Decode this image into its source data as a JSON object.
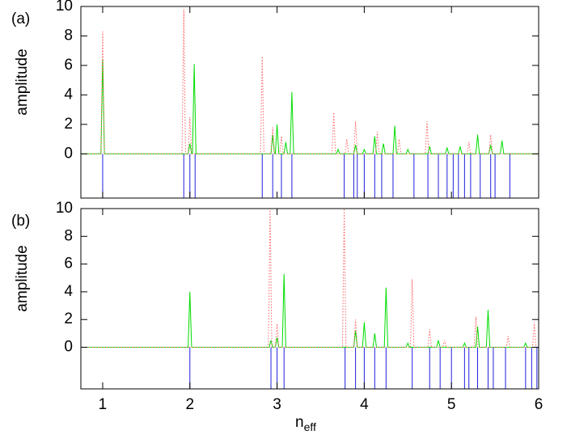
{
  "chart_data": [
    {
      "type": "line",
      "label": "(a)",
      "ylabel": "amplitude",
      "xlim": [
        0.75,
        6
      ],
      "xticks": [
        1,
        2,
        3,
        4,
        5,
        6
      ],
      "xtick_labels": false,
      "ylim": [
        -3,
        10
      ],
      "yticks": [
        0,
        2,
        4,
        6,
        8,
        10
      ],
      "series": [
        {
          "color": "#00dd00",
          "dashed": false,
          "x": [
            0.75,
            0.98,
            1.0,
            1.02,
            1.98,
            2.0,
            2.02,
            2.03,
            2.05,
            2.07,
            2.93,
            2.95,
            2.97,
            2.98,
            3.0,
            3.02,
            3.08,
            3.1,
            3.12,
            3.15,
            3.17,
            3.19,
            3.68,
            3.7,
            3.72,
            3.88,
            3.9,
            3.92,
            3.98,
            4.0,
            4.02,
            4.1,
            4.12,
            4.14,
            4.2,
            4.22,
            4.24,
            4.33,
            4.35,
            4.37,
            4.48,
            4.5,
            4.52,
            4.73,
            4.75,
            4.77,
            4.93,
            4.95,
            4.97,
            5.08,
            5.1,
            5.12,
            5.28,
            5.3,
            5.32,
            5.43,
            5.45,
            5.47,
            5.56,
            5.58,
            5.6,
            6
          ],
          "values": [
            0,
            0,
            6.4,
            0,
            0,
            0.7,
            0,
            0,
            6.1,
            0,
            0,
            1.3,
            0,
            0,
            2.0,
            0,
            0,
            0.8,
            0,
            0,
            4.2,
            0,
            0,
            0.3,
            0,
            0,
            0.6,
            0,
            0,
            0.3,
            0,
            0,
            1.2,
            0,
            0,
            0.7,
            0,
            0,
            1.9,
            0,
            0,
            0.3,
            0,
            0,
            0.5,
            0,
            0,
            0.4,
            0,
            0,
            0.5,
            0,
            0,
            1.3,
            0,
            0,
            0.6,
            0,
            0,
            0.9,
            0,
            0
          ]
        },
        {
          "color": "#ff6060",
          "dashed": true,
          "x": [
            0.75,
            0.98,
            1.0,
            1.02,
            1.91,
            1.93,
            1.95,
            1.98,
            2.0,
            2.02,
            2.81,
            2.83,
            2.85,
            2.93,
            2.95,
            2.97,
            3.03,
            3.05,
            3.07,
            3.63,
            3.65,
            3.67,
            3.78,
            3.8,
            3.82,
            3.88,
            3.9,
            3.92,
            4.13,
            4.15,
            4.17,
            4.38,
            4.4,
            4.42,
            4.7,
            4.72,
            4.74,
            5.18,
            5.2,
            5.22,
            5.43,
            5.45,
            5.47,
            6
          ],
          "values": [
            0,
            0,
            8.3,
            0,
            0,
            9.8,
            0,
            0,
            2.5,
            0,
            0,
            6.6,
            0,
            0,
            1.8,
            0,
            0,
            1.2,
            0,
            0,
            2.8,
            0,
            0,
            1.0,
            0,
            0,
            2.2,
            0,
            0,
            1.5,
            0,
            0,
            1.0,
            0,
            0,
            2.2,
            0,
            0,
            0.8,
            0,
            0,
            1.3,
            0,
            0
          ]
        }
      ],
      "modes": {
        "color": "#2020dd",
        "x": [
          1.0,
          1.93,
          2.0,
          2.06,
          2.83,
          2.95,
          3.05,
          3.17,
          3.77,
          3.88,
          3.92,
          4.0,
          4.12,
          4.2,
          4.33,
          4.57,
          4.73,
          4.85,
          4.95,
          5.02,
          5.08,
          5.15,
          5.22,
          5.33,
          5.45,
          5.5,
          5.67
        ]
      }
    },
    {
      "type": "line",
      "label": "(b)",
      "ylabel": "amplitude",
      "xlim": [
        0.75,
        6
      ],
      "xticks": [
        1,
        2,
        3,
        4,
        5,
        6
      ],
      "xtick_labels": true,
      "xlabel": "n",
      "xlabel_sub": "eff",
      "ylim": [
        -3,
        10
      ],
      "yticks": [
        0,
        2,
        4,
        6,
        8,
        10
      ],
      "series": [
        {
          "color": "#00dd00",
          "dashed": false,
          "x": [
            0.75,
            1.98,
            2.0,
            2.02,
            2.91,
            2.93,
            2.95,
            2.98,
            3.0,
            3.02,
            3.06,
            3.08,
            3.1,
            3.88,
            3.9,
            3.92,
            3.98,
            4.0,
            4.02,
            4.1,
            4.12,
            4.14,
            4.23,
            4.25,
            4.27,
            4.48,
            4.5,
            4.52,
            4.83,
            4.85,
            4.87,
            5.13,
            5.15,
            5.17,
            5.28,
            5.3,
            5.32,
            5.4,
            5.42,
            5.44,
            5.83,
            5.85,
            5.87,
            6
          ],
          "values": [
            0,
            0,
            4.0,
            0,
            0,
            0.5,
            0,
            0,
            0.7,
            0,
            0,
            5.3,
            0,
            0,
            1.2,
            0,
            0,
            1.8,
            0,
            0,
            1.0,
            0,
            0,
            4.3,
            0,
            0,
            0.3,
            0,
            0,
            0.5,
            0,
            0,
            0.3,
            0,
            0,
            1.5,
            0,
            0,
            2.7,
            0,
            0,
            0.3,
            0,
            0
          ]
        },
        {
          "color": "#ff6060",
          "dashed": true,
          "x": [
            0.75,
            2.9,
            2.92,
            2.94,
            2.98,
            3.0,
            3.02,
            3.75,
            3.77,
            3.79,
            3.88,
            3.9,
            3.92,
            4.53,
            4.55,
            4.57,
            4.73,
            4.75,
            4.77,
            4.9,
            4.92,
            4.94,
            5.26,
            5.28,
            5.3,
            5.63,
            5.65,
            5.67,
            5.93,
            5.95,
            5.97,
            6
          ],
          "values": [
            0,
            0,
            10,
            0,
            0,
            1.7,
            0,
            0,
            10,
            0,
            0,
            2.0,
            0,
            0,
            4.9,
            0,
            0,
            1.3,
            0,
            0,
            0.5,
            0,
            0,
            2.2,
            0,
            0,
            0.8,
            0,
            0,
            1.8,
            0,
            0
          ]
        }
      ],
      "modes": {
        "color": "#2020dd",
        "x": [
          2.0,
          2.93,
          3.0,
          3.08,
          3.78,
          3.9,
          4.0,
          4.12,
          4.25,
          4.55,
          4.75,
          4.87,
          5.0,
          5.15,
          5.2,
          5.3,
          5.42,
          5.48,
          5.62,
          5.85,
          5.92,
          5.98
        ]
      }
    }
  ]
}
